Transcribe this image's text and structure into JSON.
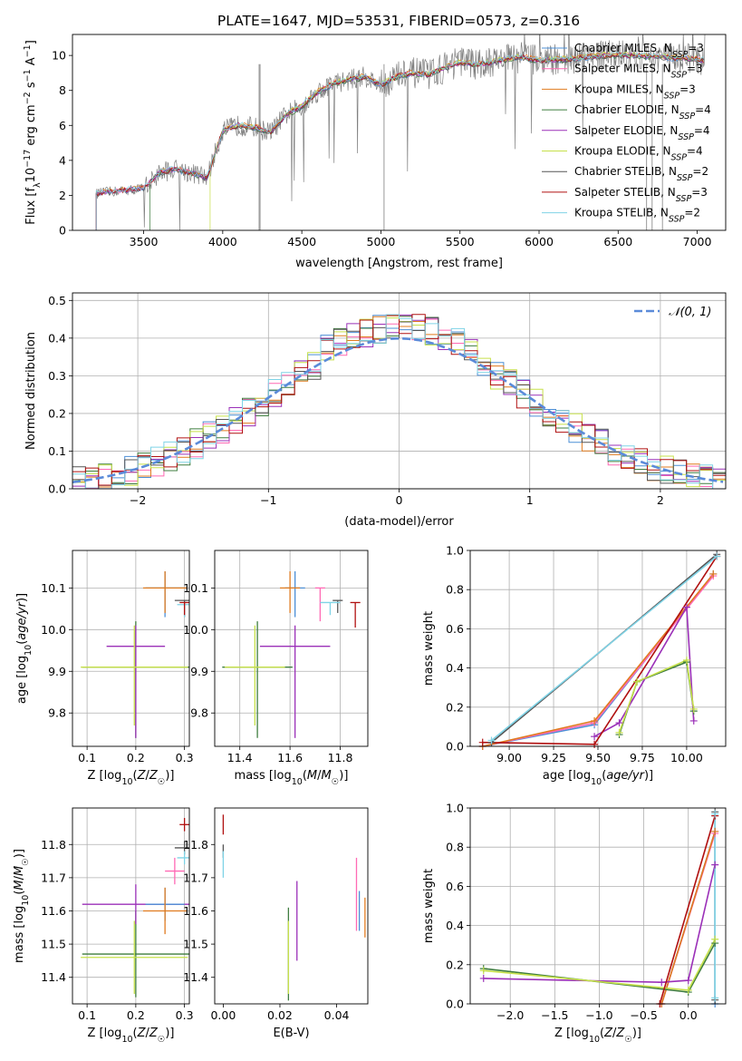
{
  "figure_title": "PLATE=1647, MJD=53531, FIBERID=0573, z=0.316",
  "colors": {
    "chabrier_miles": "#4c8fd6",
    "salpeter_miles": "#ff69b4",
    "kroupa_miles": "#e07b1f",
    "chabrier_elodie": "#3f7d3f",
    "salpeter_elodie": "#9b30b8",
    "kroupa_elodie": "#c6e04a",
    "chabrier_stelib": "#555555",
    "salpeter_stelib": "#b01010",
    "kroupa_stelib": "#7fd3e6",
    "grid": "#b0b0b0",
    "gaussian": "#5b8bd9"
  },
  "chart_data": [
    {
      "id": "spectrum",
      "type": "line",
      "title": "PLATE=1647, MJD=53531, FIBERID=0573, z=0.316",
      "xlabel": "wavelength [Angstrom, rest frame]",
      "ylabel": "Flux [f_λ 10^-17 erg cm^-2 s^-1 A^-1]",
      "xlim": [
        3050,
        7180
      ],
      "ylim": [
        0,
        11.2
      ],
      "xticks": [
        3500,
        4000,
        4500,
        5000,
        5500,
        6000,
        6500,
        7000
      ],
      "yticks": [
        0,
        2,
        4,
        6,
        8,
        10
      ],
      "grid": false,
      "legend_position": "top-right",
      "legend": [
        {
          "label": "Chabrier MILES, N_SSP=3",
          "color_key": "chabrier_miles"
        },
        {
          "label": "Salpeter MILES, N_SSP=3",
          "color_key": "salpeter_miles"
        },
        {
          "label": "Kroupa MILES, N_SSP=3",
          "color_key": "kroupa_miles"
        },
        {
          "label": "Chabrier ELODIE, N_SSP=4",
          "color_key": "chabrier_elodie"
        },
        {
          "label": "Salpeter ELODIE, N_SSP=4",
          "color_key": "salpeter_elodie"
        },
        {
          "label": "Kroupa ELODIE, N_SSP=4",
          "color_key": "kroupa_elodie"
        },
        {
          "label": "Chabrier STELIB, N_SSP=2",
          "color_key": "chabrier_stelib"
        },
        {
          "label": "Salpeter STELIB, N_SSP=3",
          "color_key": "salpeter_stelib"
        },
        {
          "label": "Kroupa STELIB, N_SSP=2",
          "color_key": "kroupa_stelib"
        }
      ],
      "continuum": {
        "x": [
          3200,
          3280,
          3400,
          3500,
          3600,
          3700,
          3800,
          3900,
          4000,
          4100,
          4200,
          4300,
          4400,
          4500,
          4600,
          4700,
          4800,
          4900,
          5000,
          5100,
          5200,
          5300,
          5400,
          5500,
          5600,
          5700,
          5800,
          5900,
          6000,
          6200,
          6400,
          6600,
          6800,
          7000,
          7050
        ],
        "y": [
          2.1,
          2.2,
          2.3,
          2.4,
          3.3,
          3.5,
          3.3,
          3.0,
          5.7,
          6.0,
          5.9,
          5.6,
          6.6,
          7.1,
          7.9,
          8.4,
          8.6,
          8.8,
          8.3,
          8.8,
          9.0,
          8.9,
          9.3,
          9.6,
          9.5,
          9.6,
          9.8,
          9.9,
          9.7,
          9.8,
          10.0,
          10.0,
          9.9,
          9.8,
          9.7
        ]
      },
      "model_starts": [
        3200,
        3200,
        3200,
        3540,
        3200,
        3920,
        3200,
        3200,
        3200
      ]
    },
    {
      "id": "residuals",
      "type": "line",
      "xlabel": "(data-model)/error",
      "ylabel": "Normed distribution",
      "xlim": [
        -2.5,
        2.5
      ],
      "ylim": [
        0,
        0.52
      ],
      "xticks": [
        -2,
        -1,
        0,
        1,
        2
      ],
      "yticks": [
        0.0,
        0.1,
        0.2,
        0.3,
        0.4,
        0.5
      ],
      "grid": true,
      "legend_position": "top-right",
      "legend": [
        {
          "label": "𝒩(0,1)",
          "style": "dashed"
        }
      ],
      "bin_width": 0.1,
      "series": [
        {
          "name": "N(0,1)",
          "curve": "gaussian",
          "mu": 0,
          "sigma": 1
        }
      ]
    },
    {
      "id": "age_vs_Z",
      "type": "scatter",
      "xlabel": "Z [log10(Z/Z☉)]",
      "ylabel": "age [log10(age/yr)]",
      "xlim": [
        0.07,
        0.31
      ],
      "ylim": [
        9.72,
        10.19
      ],
      "xticks": [
        0.1,
        0.2,
        0.3
      ],
      "yticks": [
        9.8,
        9.9,
        10.0,
        10.1
      ],
      "grid": true,
      "points": [
        {
          "x": 0.2,
          "y": 9.91,
          "xerr": 0.11,
          "yerr_lo": 0.17,
          "yerr_hi": 0.11,
          "color_key": "chabrier_elodie"
        },
        {
          "x": 0.2,
          "y": 9.96,
          "xerr": 0.06,
          "yerr_lo": 0.22,
          "yerr_hi": 0.05,
          "color_key": "salpeter_elodie"
        },
        {
          "x": 0.197,
          "y": 9.91,
          "xerr": 0.11,
          "yerr_lo": 0.14,
          "yerr_hi": 0.1,
          "color_key": "kroupa_elodie"
        },
        {
          "x": 0.26,
          "y": 10.1,
          "xerr": 0.04,
          "yerr_lo": 0.07,
          "yerr_hi": 0.04,
          "color_key": "chabrier_miles"
        },
        {
          "x": 0.26,
          "y": 10.1,
          "xerr": 0.045,
          "yerr_lo": 0.06,
          "yerr_hi": 0.04,
          "color_key": "kroupa_miles"
        },
        {
          "x": 0.3,
          "y": 10.07,
          "xerr": 0.02,
          "yerr_lo": 0.04,
          "yerr_hi": 0.0,
          "color_key": "chabrier_stelib"
        },
        {
          "x": 0.3,
          "y": 10.06,
          "xerr": 0.015,
          "yerr_lo": 0.03,
          "yerr_hi": 0.0,
          "color_key": "kroupa_stelib"
        },
        {
          "x": 0.3,
          "y": 10.065,
          "xerr": 0.01,
          "yerr_lo": 0.03,
          "yerr_hi": 0.0,
          "color_key": "salpeter_stelib"
        }
      ]
    },
    {
      "id": "age_vs_mass",
      "type": "scatter",
      "xlabel": "mass [log10(M/M☉)]",
      "ylabel": "",
      "xlim": [
        11.3,
        11.91
      ],
      "ylim": [
        9.72,
        10.19
      ],
      "xticks": [
        11.4,
        11.6,
        11.8
      ],
      "yticks": [
        9.8,
        9.9,
        10.0,
        10.1
      ],
      "grid": true,
      "points": [
        {
          "x": 11.47,
          "y": 9.91,
          "xerr": 0.14,
          "yerr_lo": 0.17,
          "yerr_hi": 0.11,
          "color_key": "chabrier_elodie"
        },
        {
          "x": 11.62,
          "y": 9.96,
          "xerr": 0.14,
          "yerr_lo": 0.22,
          "yerr_hi": 0.05,
          "color_key": "salpeter_elodie"
        },
        {
          "x": 11.46,
          "y": 9.91,
          "xerr": 0.12,
          "yerr_lo": 0.14,
          "yerr_hi": 0.1,
          "color_key": "kroupa_elodie"
        },
        {
          "x": 11.62,
          "y": 10.1,
          "xerr": 0.04,
          "yerr_lo": 0.07,
          "yerr_hi": 0.04,
          "color_key": "chabrier_miles"
        },
        {
          "x": 11.6,
          "y": 10.1,
          "xerr": 0.04,
          "yerr_lo": 0.06,
          "yerr_hi": 0.04,
          "color_key": "kroupa_miles"
        },
        {
          "x": 11.72,
          "y": 10.1,
          "xerr": 0.02,
          "yerr_lo": 0.08,
          "yerr_hi": 0.0,
          "color_key": "salpeter_miles"
        },
        {
          "x": 11.79,
          "y": 10.07,
          "xerr": 0.02,
          "yerr_lo": 0.03,
          "yerr_hi": 0.0,
          "color_key": "chabrier_stelib"
        },
        {
          "x": 11.76,
          "y": 10.065,
          "xerr": 0.04,
          "yerr_lo": 0.03,
          "yerr_hi": 0.0,
          "color_key": "kroupa_stelib"
        },
        {
          "x": 11.86,
          "y": 10.065,
          "xerr": 0.02,
          "yerr_lo": 0.06,
          "yerr_hi": 0.0,
          "color_key": "salpeter_stelib"
        }
      ]
    },
    {
      "id": "weight_vs_age",
      "type": "line",
      "xlabel": "age [log10(age/yr)]",
      "ylabel": "mass weight",
      "xlim": [
        8.78,
        10.22
      ],
      "ylim": [
        0,
        1
      ],
      "xticks": [
        9.0,
        9.25,
        9.5,
        9.75,
        10.0
      ],
      "yticks": [
        0.0,
        0.2,
        0.4,
        0.6,
        0.8,
        1.0
      ],
      "grid": true,
      "series": [
        {
          "name": "Chabrier MILES",
          "color_key": "chabrier_miles",
          "x": [
            8.85,
            9.48,
            10.15
          ],
          "y": [
            0.0,
            0.11,
            0.88
          ]
        },
        {
          "name": "Salpeter MILES",
          "color_key": "salpeter_miles",
          "x": [
            8.85,
            9.48,
            10.15
          ],
          "y": [
            0.0,
            0.12,
            0.87
          ]
        },
        {
          "name": "Kroupa MILES",
          "color_key": "kroupa_miles",
          "x": [
            8.85,
            9.48,
            10.15
          ],
          "y": [
            0.0,
            0.13,
            0.88
          ]
        },
        {
          "name": "Chabrier ELODIE",
          "color_key": "chabrier_elodie",
          "x": [
            9.62,
            9.72,
            10.0,
            10.04
          ],
          "y": [
            0.06,
            0.33,
            0.43,
            0.18
          ]
        },
        {
          "name": "Salpeter ELODIE",
          "color_key": "salpeter_elodie",
          "x": [
            9.48,
            9.62,
            10.0,
            10.04
          ],
          "y": [
            0.05,
            0.12,
            0.71,
            0.13
          ]
        },
        {
          "name": "Kroupa ELODIE",
          "color_key": "kroupa_elodie",
          "x": [
            9.62,
            9.72,
            10.0,
            10.04
          ],
          "y": [
            0.07,
            0.33,
            0.44,
            0.19
          ]
        },
        {
          "name": "Chabrier STELIB",
          "color_key": "chabrier_stelib",
          "x": [
            8.9,
            10.17
          ],
          "y": [
            0.02,
            0.98
          ]
        },
        {
          "name": "Salpeter STELIB",
          "color_key": "salpeter_stelib",
          "x": [
            8.85,
            9.48,
            10.17
          ],
          "y": [
            0.02,
            0.01,
            0.97
          ]
        },
        {
          "name": "Kroupa STELIB",
          "color_key": "kroupa_stelib",
          "x": [
            8.9,
            10.17
          ],
          "y": [
            0.03,
            0.97
          ]
        }
      ]
    },
    {
      "id": "mass_vs_Z",
      "type": "scatter",
      "xlabel": "Z [log10(Z/Z☉)]",
      "ylabel": "mass [log10(M/M☉)]",
      "xlim": [
        0.07,
        0.31
      ],
      "ylim": [
        11.32,
        11.91
      ],
      "xticks": [
        0.1,
        0.2,
        0.3
      ],
      "yticks": [
        11.4,
        11.5,
        11.6,
        11.7,
        11.8
      ],
      "grid": true,
      "points": [
        {
          "x": 0.2,
          "y": 11.47,
          "xerr": 0.11,
          "yerr": 0.13,
          "color_key": "chabrier_elodie"
        },
        {
          "x": 0.2,
          "y": 11.62,
          "xerr": 0.11,
          "yerr": 0.06,
          "color_key": "salpeter_elodie"
        },
        {
          "x": 0.197,
          "y": 11.46,
          "xerr": 0.11,
          "yerr": 0.11,
          "color_key": "kroupa_elodie"
        },
        {
          "x": 0.26,
          "y": 11.62,
          "xerr": 0.04,
          "yerr": 0.05,
          "color_key": "chabrier_miles"
        },
        {
          "x": 0.26,
          "y": 11.6,
          "xerr": 0.045,
          "yerr": 0.07,
          "color_key": "kroupa_miles"
        },
        {
          "x": 0.28,
          "y": 11.72,
          "xerr": 0.02,
          "yerr": 0.04,
          "color_key": "salpeter_miles"
        },
        {
          "x": 0.3,
          "y": 11.79,
          "xerr": 0.02,
          "yerr": 0.02,
          "color_key": "chabrier_stelib"
        },
        {
          "x": 0.3,
          "y": 11.76,
          "xerr": 0.015,
          "yerr": 0.02,
          "color_key": "kroupa_stelib"
        },
        {
          "x": 0.3,
          "y": 11.86,
          "xerr": 0.01,
          "yerr": 0.02,
          "color_key": "salpeter_stelib"
        }
      ]
    },
    {
      "id": "mass_vs_ebv",
      "type": "scatter",
      "xlabel": "E(B-V)",
      "ylabel": "",
      "xlim": [
        -0.003,
        0.051
      ],
      "ylim": [
        11.32,
        11.91
      ],
      "xticks": [
        0.0,
        0.02,
        0.04
      ],
      "yticks": [
        11.4,
        11.5,
        11.6,
        11.7,
        11.8
      ],
      "grid": false,
      "points": [
        {
          "x": 0.0,
          "y": 11.86,
          "yerr": 0.03,
          "color_key": "salpeter_stelib"
        },
        {
          "x": 0.0,
          "y": 11.78,
          "yerr": 0.02,
          "color_key": "chabrier_stelib"
        },
        {
          "x": 0.0,
          "y": 11.74,
          "yerr": 0.04,
          "color_key": "kroupa_stelib"
        },
        {
          "x": 0.023,
          "y": 11.47,
          "yerr": 0.14,
          "color_key": "chabrier_elodie"
        },
        {
          "x": 0.023,
          "y": 11.46,
          "yerr": 0.11,
          "color_key": "kroupa_elodie"
        },
        {
          "x": 0.026,
          "y": 11.57,
          "yerr": 0.12,
          "color_key": "salpeter_elodie"
        },
        {
          "x": 0.047,
          "y": 11.65,
          "yerr": 0.11,
          "color_key": "salpeter_miles"
        },
        {
          "x": 0.048,
          "y": 11.6,
          "yerr": 0.06,
          "color_key": "chabrier_miles"
        },
        {
          "x": 0.05,
          "y": 11.58,
          "yerr": 0.06,
          "color_key": "kroupa_miles"
        }
      ]
    },
    {
      "id": "weight_vs_Z",
      "type": "line",
      "xlabel": "Z [log10(Z/Z☉)]",
      "ylabel": "mass weight",
      "xlim": [
        -2.45,
        0.42
      ],
      "ylim": [
        0,
        1
      ],
      "xticks": [
        -2.0,
        -1.5,
        -1.0,
        -0.5,
        0.0
      ],
      "yticks": [
        0.0,
        0.2,
        0.4,
        0.6,
        0.8,
        1.0
      ],
      "grid": true,
      "series": [
        {
          "name": "Chabrier MILES",
          "color_key": "chabrier_miles",
          "x": [
            -0.3,
            0.3,
            0.3
          ],
          "y": [
            0.0,
            0.88,
            0.0
          ]
        },
        {
          "name": "Salpeter MILES",
          "color_key": "salpeter_miles",
          "x": [
            -0.3,
            0.3
          ],
          "y": [
            0.0,
            0.87
          ]
        },
        {
          "name": "Kroupa MILES",
          "color_key": "kroupa_miles",
          "x": [
            -0.3,
            0.3
          ],
          "y": [
            0.0,
            0.88
          ]
        },
        {
          "name": "Chabrier ELODIE",
          "color_key": "chabrier_elodie",
          "x": [
            -2.3,
            0.0,
            0.3
          ],
          "y": [
            0.18,
            0.06,
            0.31
          ]
        },
        {
          "name": "Salpeter ELODIE",
          "color_key": "salpeter_elodie",
          "x": [
            -2.3,
            -0.3,
            0.0,
            0.3
          ],
          "y": [
            0.13,
            0.11,
            0.12,
            0.71
          ]
        },
        {
          "name": "Kroupa ELODIE",
          "color_key": "kroupa_elodie",
          "x": [
            -2.3,
            0.0,
            0.3
          ],
          "y": [
            0.17,
            0.07,
            0.33
          ]
        },
        {
          "name": "Chabrier STELIB",
          "color_key": "chabrier_stelib",
          "x": [
            0.3,
            0.3
          ],
          "y": [
            0.02,
            0.98
          ]
        },
        {
          "name": "Salpeter STELIB",
          "color_key": "salpeter_stelib",
          "x": [
            -0.32,
            0.3
          ],
          "y": [
            0.0,
            0.96
          ]
        },
        {
          "name": "Kroupa STELIB",
          "color_key": "kroupa_stelib",
          "x": [
            0.3,
            0.3
          ],
          "y": [
            0.03,
            0.97
          ]
        }
      ]
    }
  ]
}
